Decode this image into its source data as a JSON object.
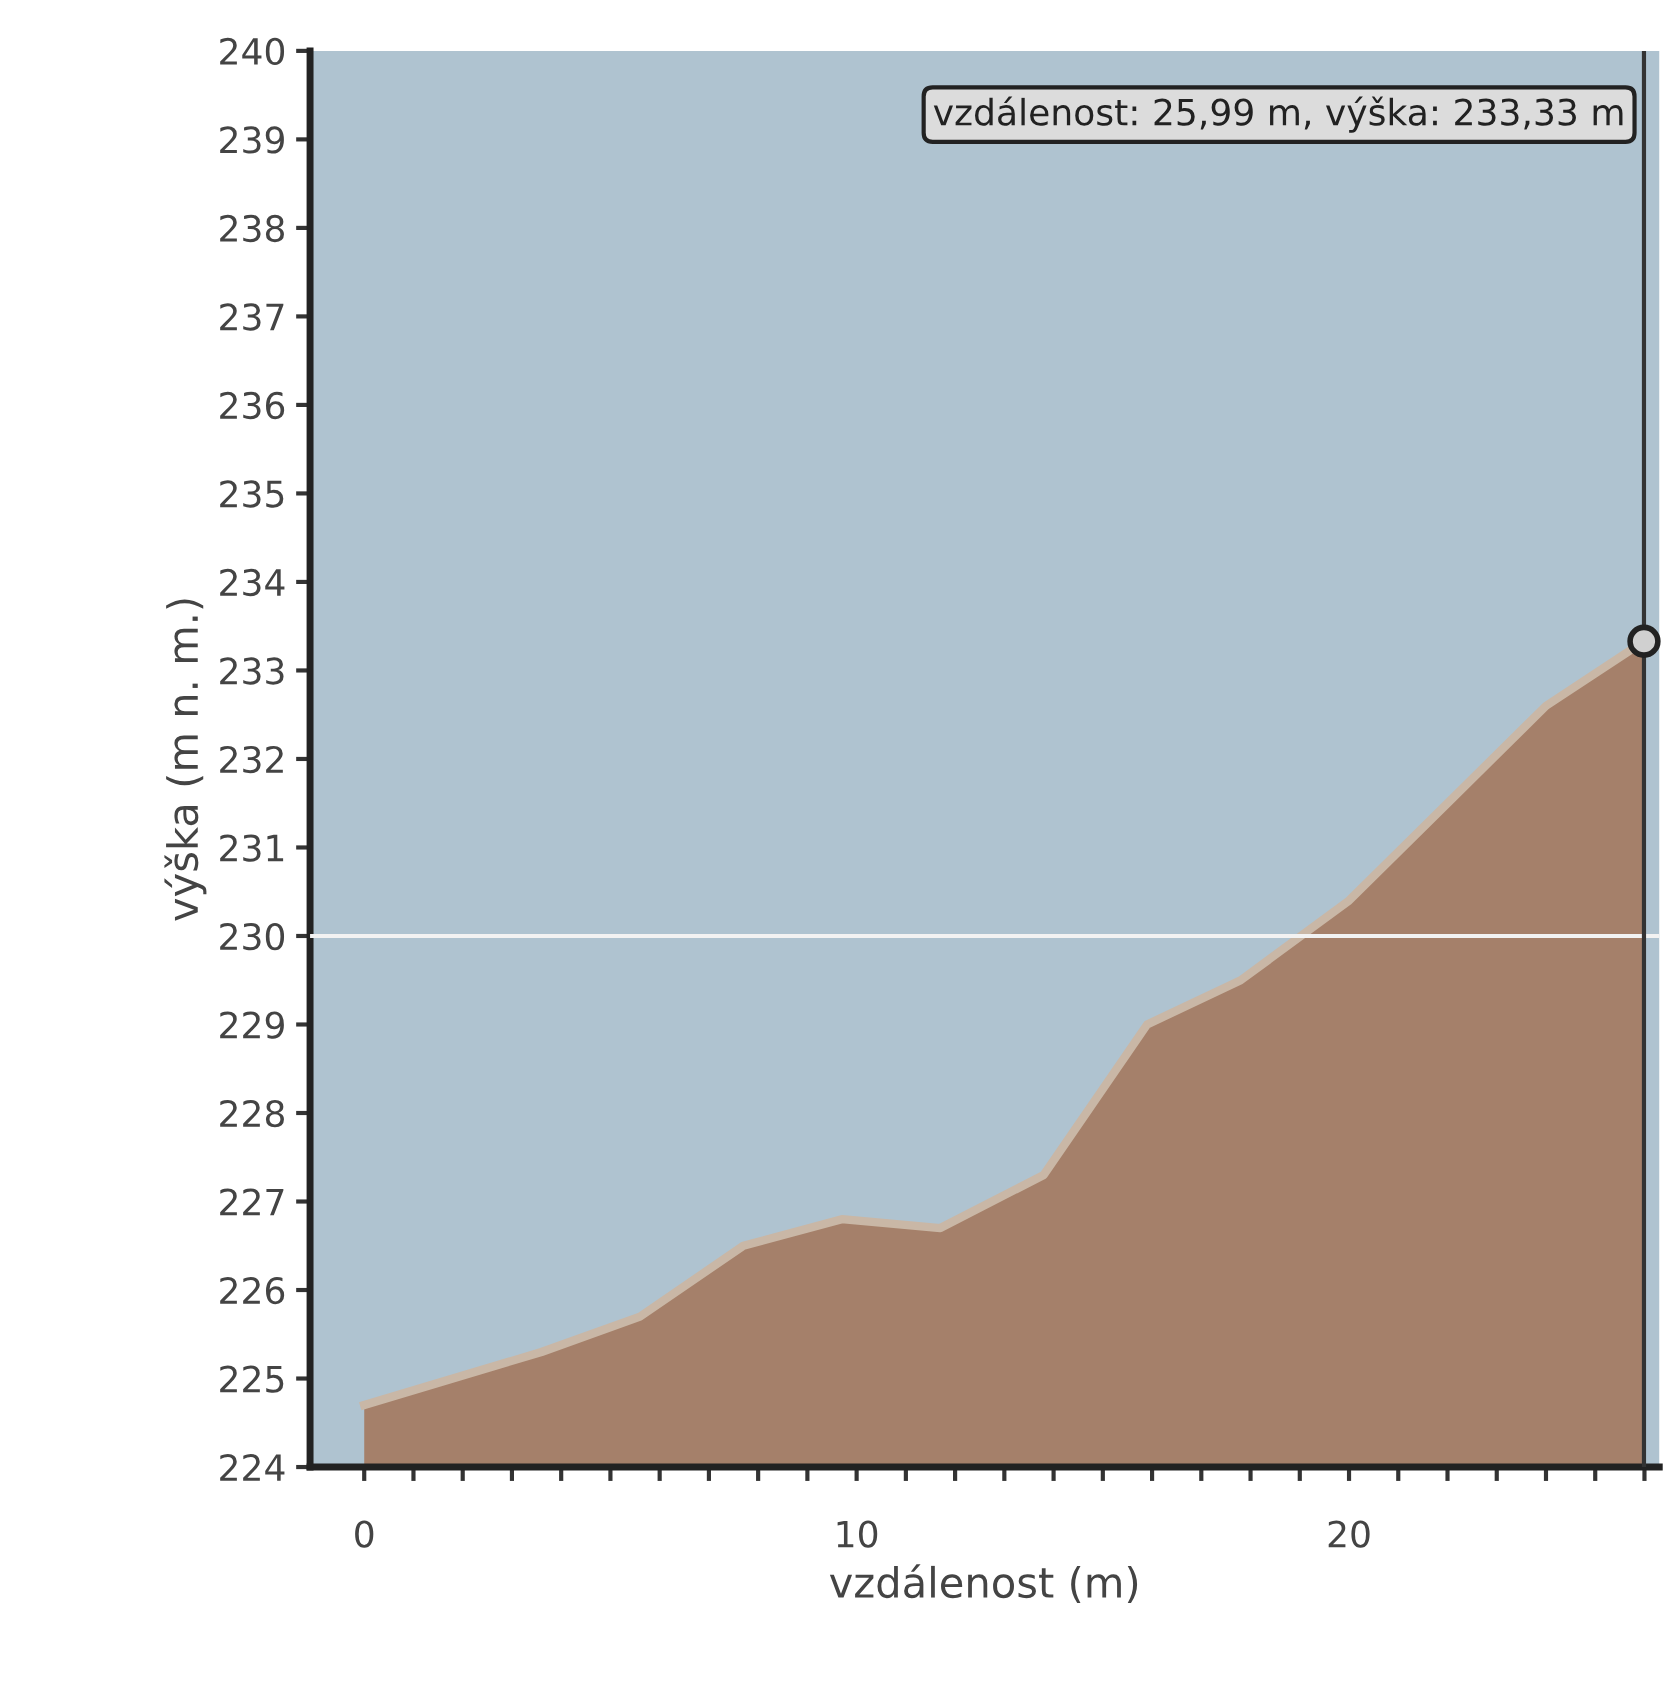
{
  "chart_data": {
    "type": "area",
    "xlabel": "vzdálenost (m)",
    "ylabel": "výška (m n. m.)",
    "x": [
      0,
      3.6,
      5.6,
      7.7,
      9.7,
      11.7,
      13.8,
      15.9,
      17.8,
      20.0,
      22.0,
      24.0,
      25.99
    ],
    "series": [
      {
        "color": "#a5806a",
        "values": [
          224.7,
          225.3,
          225.7,
          226.5,
          226.8,
          226.7,
          227.3,
          229.0,
          229.5,
          230.4,
          231.5,
          232.6,
          233.33
        ]
      },
      {
        "type": "scatter",
        "color": "#d0d0d0",
        "x": [
          25.99
        ],
        "values": [
          233.33
        ]
      }
    ],
    "xlim": [
      -1.1,
      26.3
    ],
    "xticks": [
      0,
      {
        "value": 1,
        "label": null
      },
      {
        "value": 2,
        "label": null
      },
      {
        "value": 3,
        "label": null
      },
      {
        "value": 4,
        "label": null
      },
      {
        "value": 5,
        "label": null
      },
      {
        "value": 6,
        "label": null
      },
      {
        "value": 7,
        "label": null
      },
      {
        "value": 8,
        "label": null
      },
      {
        "value": 9,
        "label": null
      },
      10,
      {
        "value": 11,
        "label": null
      },
      {
        "value": 12,
        "label": null
      },
      {
        "value": 13,
        "label": null
      },
      {
        "value": 14,
        "label": null
      },
      {
        "value": 15,
        "label": null
      },
      {
        "value": 16,
        "label": null
      },
      {
        "value": 17,
        "label": null
      },
      {
        "value": 18,
        "label": null
      },
      {
        "value": 19,
        "label": null
      },
      20,
      {
        "value": 21,
        "label": null
      },
      {
        "value": 22,
        "label": null
      },
      {
        "value": 23,
        "label": null
      },
      {
        "value": 24,
        "label": null
      },
      {
        "value": 25,
        "label": null
      },
      {
        "value": 26,
        "label": null
      }
    ],
    "ylim": [
      224,
      240
    ],
    "yticks": [
      224,
      225,
      226,
      227,
      228,
      229,
      230,
      231,
      232,
      233,
      234,
      235,
      236,
      237,
      238,
      239,
      240
    ],
    "ref_lines": [
      {
        "axis": "y",
        "value": 230,
        "color": "#f2f2f2"
      },
      {
        "axis": "x",
        "value": 25.99,
        "color": "#333333"
      }
    ],
    "annotations": [
      "vzdálenost: 25,99 m, výška: 233,33 m"
    ],
    "grid": false,
    "legend": false
  }
}
